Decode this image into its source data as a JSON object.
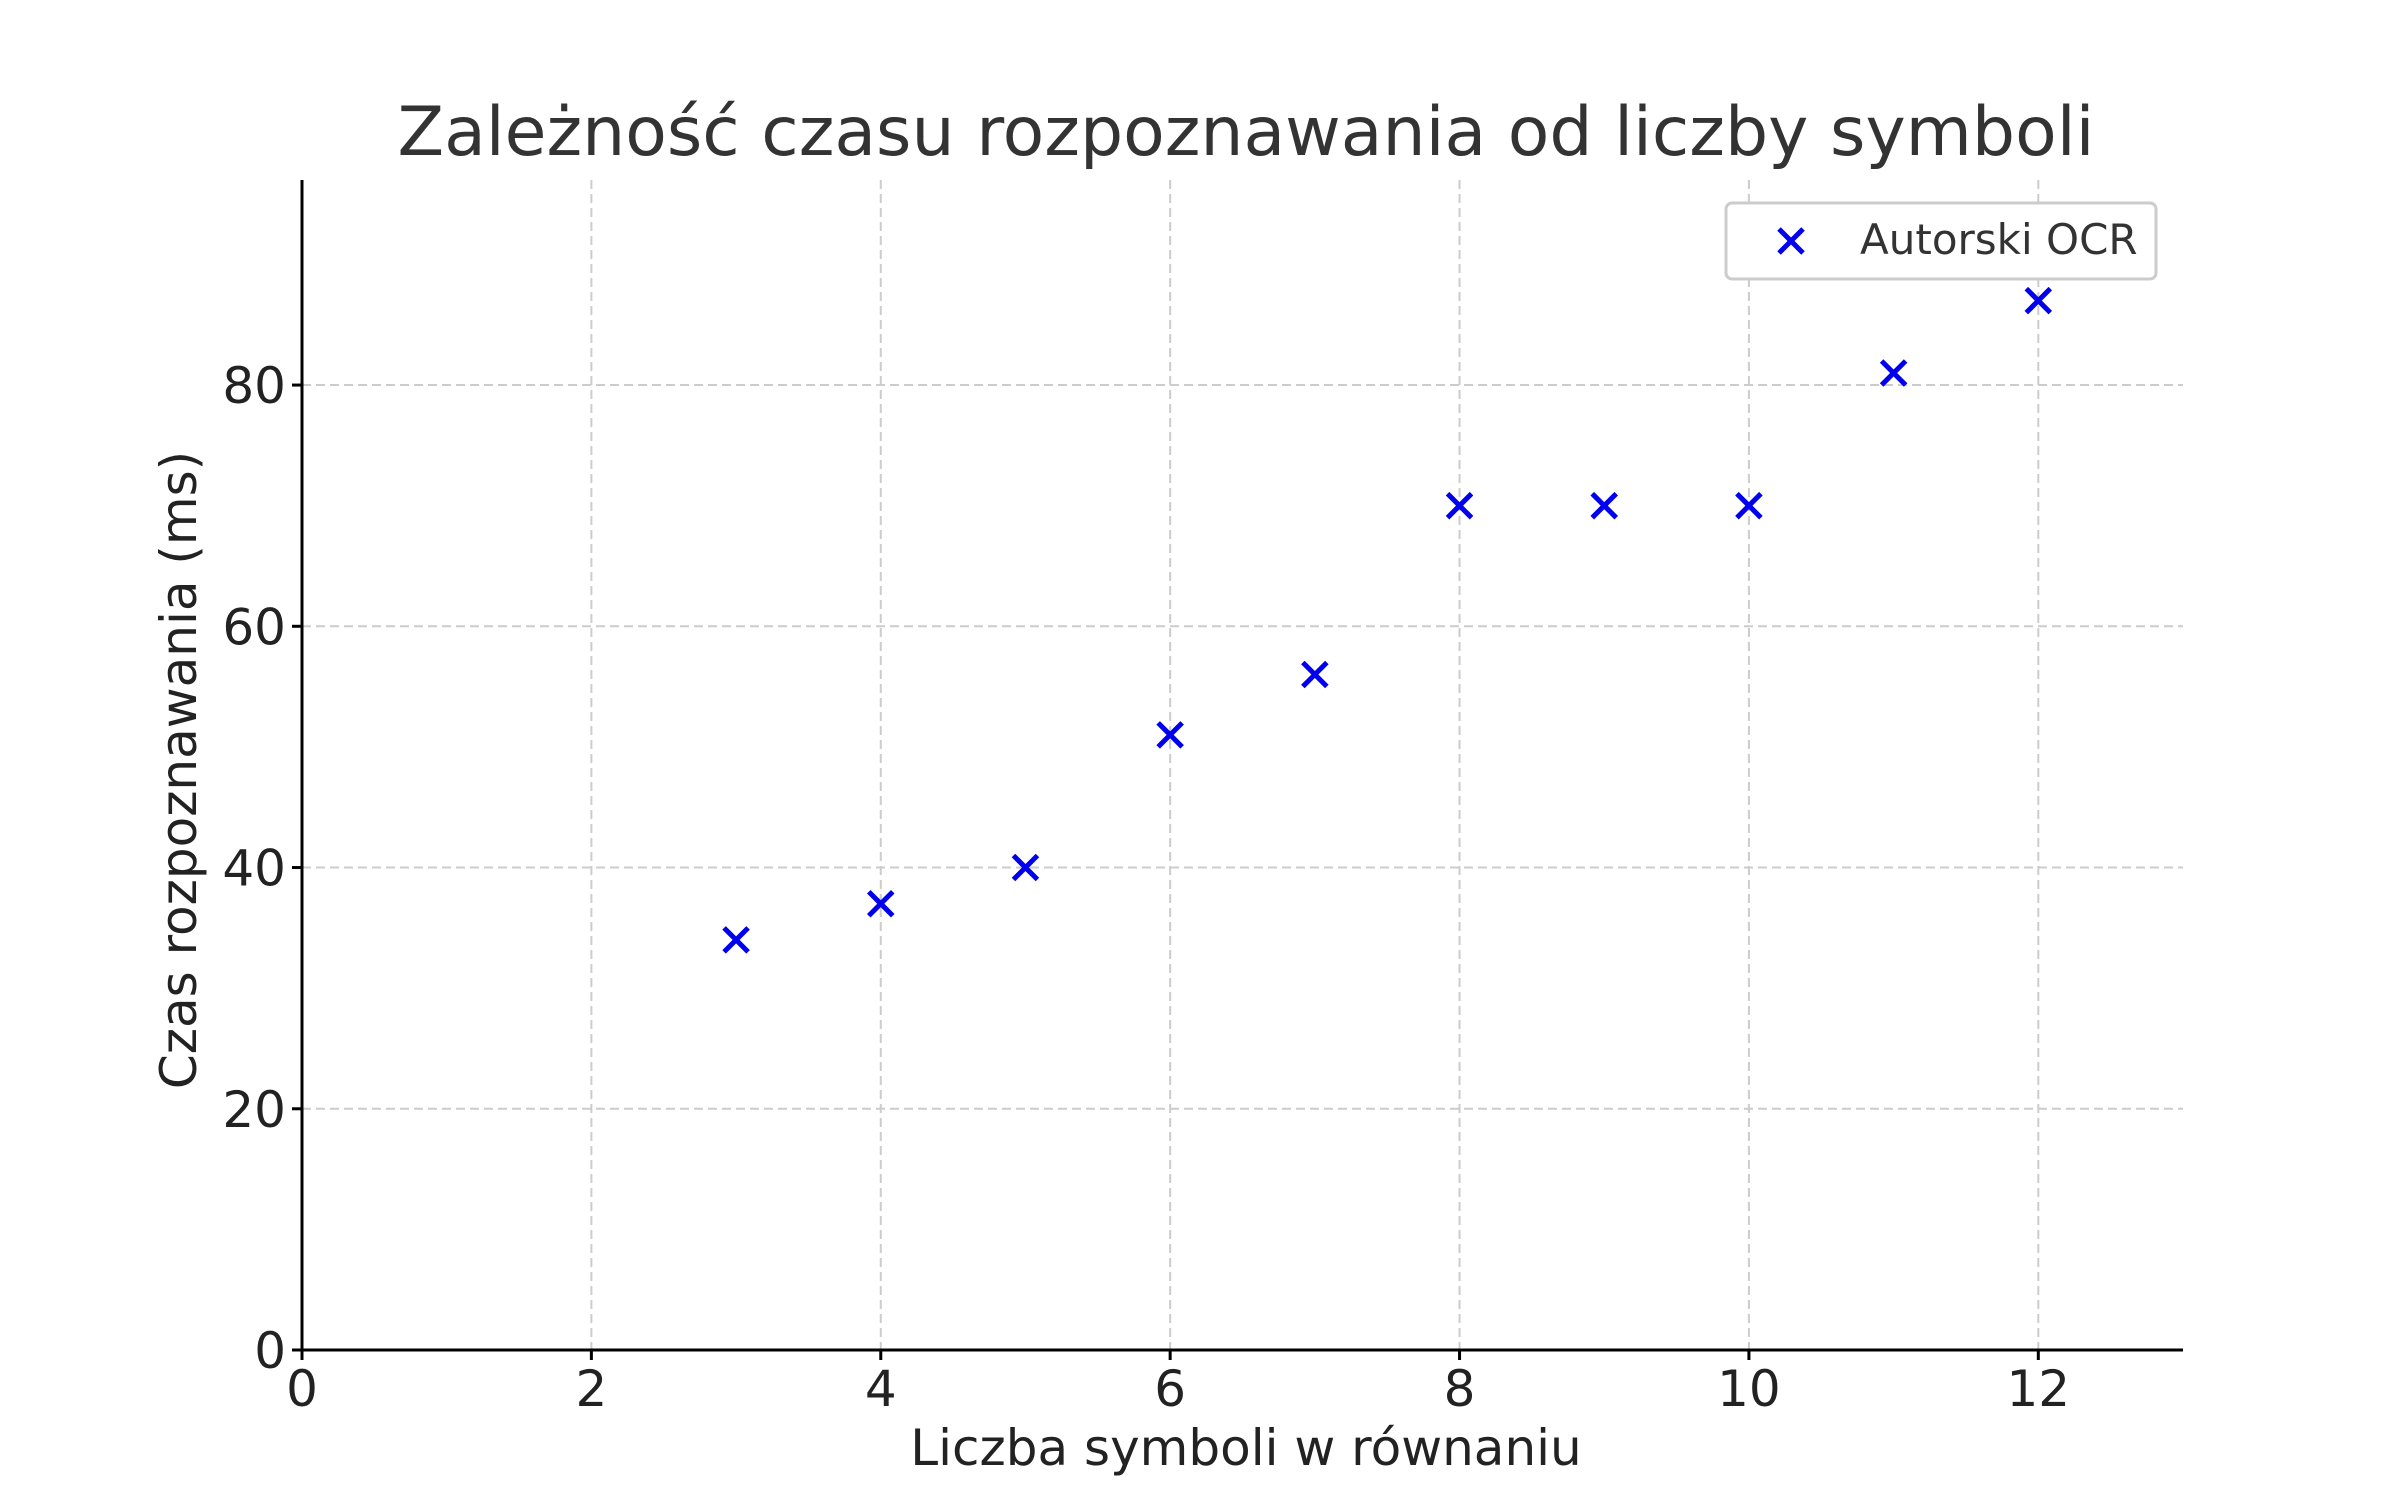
{
  "chart_data": {
    "type": "scatter",
    "title": "Zależność czasu rozpoznawania od liczby symboli",
    "xlabel": "Liczba symboli w równaniu",
    "ylabel": "Czas rozpoznawania (ms)",
    "xlim": [
      0,
      13
    ],
    "ylim": [
      0,
      97
    ],
    "xticks": [
      0,
      2,
      4,
      6,
      8,
      10,
      12
    ],
    "yticks": [
      0,
      20,
      40,
      60,
      80
    ],
    "grid": true,
    "legend_position": "top-right",
    "series": [
      {
        "name": "Autorski OCR",
        "marker": "x",
        "color": "#0000ee",
        "points": [
          {
            "x": 3,
            "y": 34
          },
          {
            "x": 4,
            "y": 37
          },
          {
            "x": 5,
            "y": 40
          },
          {
            "x": 6,
            "y": 51
          },
          {
            "x": 7,
            "y": 56
          },
          {
            "x": 8,
            "y": 70
          },
          {
            "x": 9,
            "y": 70
          },
          {
            "x": 10,
            "y": 70
          },
          {
            "x": 11,
            "y": 81
          },
          {
            "x": 12,
            "y": 87
          }
        ]
      }
    ]
  }
}
